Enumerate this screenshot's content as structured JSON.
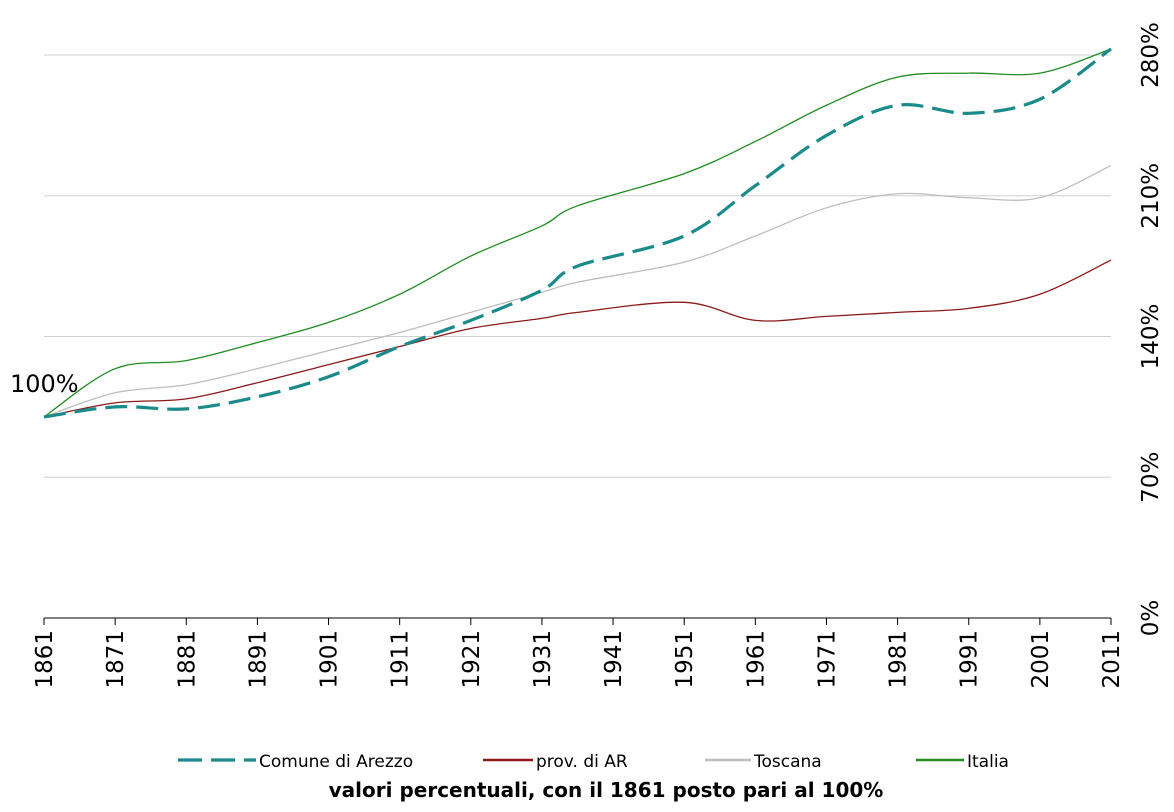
{
  "chart_data": {
    "type": "line",
    "caption": "valori percentuali, con il 1861 posto pari al 100%",
    "base_label": "100%",
    "x": [
      1861,
      1871,
      1881,
      1891,
      1901,
      1911,
      1921,
      1931,
      1936,
      1951,
      1961,
      1971,
      1981,
      1991,
      2001,
      2011
    ],
    "x_ticks": [
      "1861",
      "1871",
      "1881",
      "1891",
      "1901",
      "1911",
      "1921",
      "1931",
      "1941",
      "1951",
      "1961",
      "1971",
      "1981",
      "1991",
      "2001",
      "2011"
    ],
    "y_ticks": [
      "0%",
      "70%",
      "140%",
      "210%",
      "280%"
    ],
    "ylim": [
      0,
      280
    ],
    "grid": true,
    "legend_position": "bottom",
    "series": [
      {
        "name": "Comune di Arezzo",
        "color": "#1b8a8a",
        "dash": "long-dash",
        "values": [
          100,
          105,
          104,
          110,
          120,
          135,
          148,
          163,
          175,
          190,
          215,
          240,
          255,
          251,
          258,
          283
        ]
      },
      {
        "name": "prov. di AR",
        "color": "#8b1a1a",
        "dash": "solid",
        "values": [
          100,
          107,
          109,
          117,
          126,
          135,
          144,
          149,
          152,
          157,
          148,
          150,
          152,
          154,
          161,
          178
        ]
      },
      {
        "name": "Toscana",
        "color": "#bdbdbd",
        "dash": "solid",
        "values": [
          100,
          112,
          116,
          124,
          133,
          142,
          152,
          162,
          167,
          177,
          190,
          204,
          211,
          209,
          209,
          225
        ]
      },
      {
        "name": "Italia",
        "color": "#228b22",
        "dash": "solid",
        "values": [
          100,
          124,
          128,
          137,
          147,
          161,
          180,
          195,
          205,
          221,
          237,
          255,
          269,
          271,
          271,
          283
        ]
      }
    ]
  }
}
